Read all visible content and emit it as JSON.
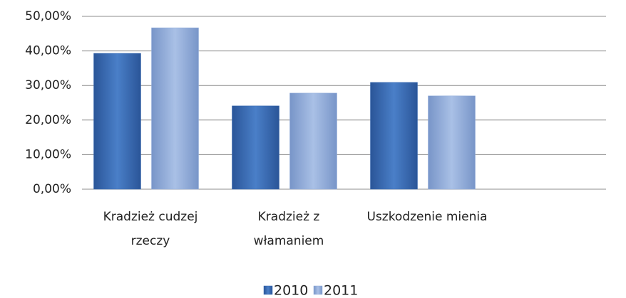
{
  "chart_data": {
    "type": "bar",
    "categories": [
      "Kradzież cudzej rzeczy",
      "Kradzież z włamaniem",
      "Uszkodzenie mienia"
    ],
    "series": [
      {
        "name": "2010",
        "color": "#3b6cb3",
        "values": [
          39.3,
          24.1,
          30.9
        ]
      },
      {
        "name": "2011",
        "color": "#93aedb",
        "values": [
          46.7,
          27.8,
          27.0
        ]
      }
    ],
    "ylim": [
      0,
      50
    ],
    "yticks": [
      {
        "value": 0,
        "label": "0,00%"
      },
      {
        "value": 10,
        "label": "10,00%"
      },
      {
        "value": 20,
        "label": "20,00%"
      },
      {
        "value": 30,
        "label": "30,00%"
      },
      {
        "value": 40,
        "label": "40,00%"
      },
      {
        "value": 50,
        "label": "50,00%"
      }
    ],
    "grid": true,
    "legend": "bottom"
  }
}
